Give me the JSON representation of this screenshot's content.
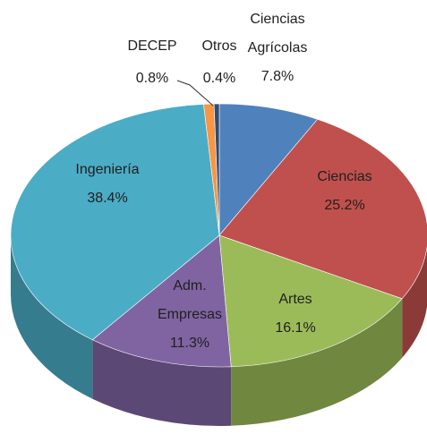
{
  "chart_data": {
    "type": "pie3d",
    "categories": [
      "Ciencias Agrícolas",
      "Ciencias",
      "Artes",
      "Adm. Empresas",
      "Ingeniería",
      "DECEP",
      "Otros"
    ],
    "values": [
      7.8,
      25.2,
      16.1,
      11.3,
      38.4,
      0.8,
      0.4
    ],
    "value_labels": [
      "7.8%",
      "25.2%",
      "16.1%",
      "11.3%",
      "38.4%",
      "0.8%",
      "0.4%"
    ],
    "colors": [
      "#4f81bd",
      "#c0504d",
      "#9bbb59",
      "#8064a2",
      "#4bacc6",
      "#f79646",
      "#2c4d75"
    ]
  }
}
